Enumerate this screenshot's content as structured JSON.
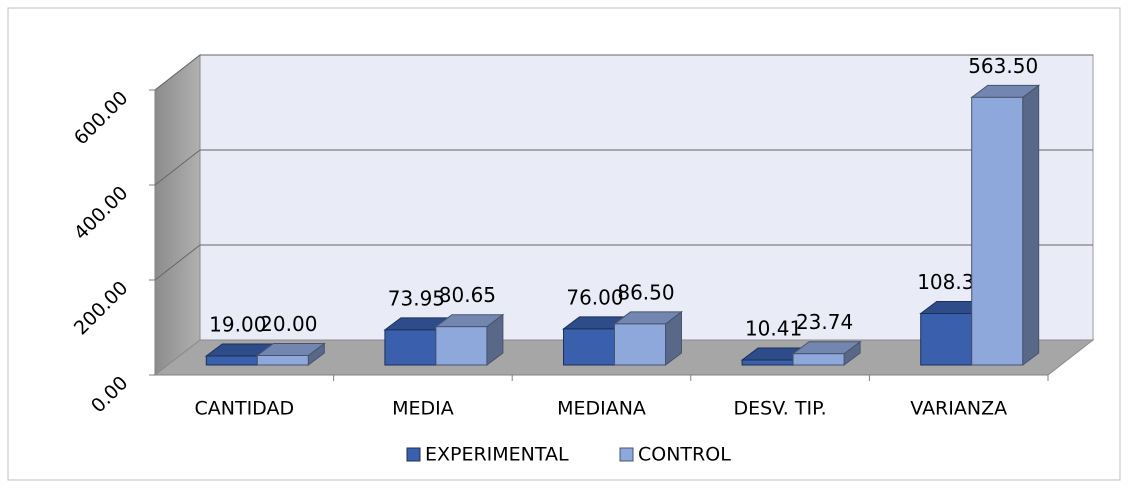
{
  "chart_data": {
    "type": "bar3d",
    "categories": [
      "CANTIDAD",
      "MEDIA",
      "MEDIANA",
      "DESV. TIP.",
      "VARIANZA"
    ],
    "series": [
      {
        "name": "EXPERIMENTAL",
        "color": "#3a5fad",
        "values": [
          19,
          73.95,
          76,
          10.41,
          108.39
        ],
        "value_labels": [
          "19.00",
          "73.95",
          "76.00",
          "10.41",
          "108.39"
        ]
      },
      {
        "name": "CONTROL",
        "color": "#8fa8dc",
        "values": [
          20,
          80.65,
          86.5,
          23.74,
          563.5
        ],
        "value_labels": [
          "20.00",
          "80.65",
          "86.50",
          "23.74",
          "563.50"
        ]
      }
    ],
    "ylim": [
      0,
      600
    ],
    "yticks": [
      {
        "value": 0,
        "label": "0.00"
      },
      {
        "value": 200,
        "label": "200.00"
      },
      {
        "value": 400,
        "label": "400.00"
      },
      {
        "value": 600,
        "label": "600.00"
      }
    ],
    "grid": true,
    "legend": "bottom"
  }
}
